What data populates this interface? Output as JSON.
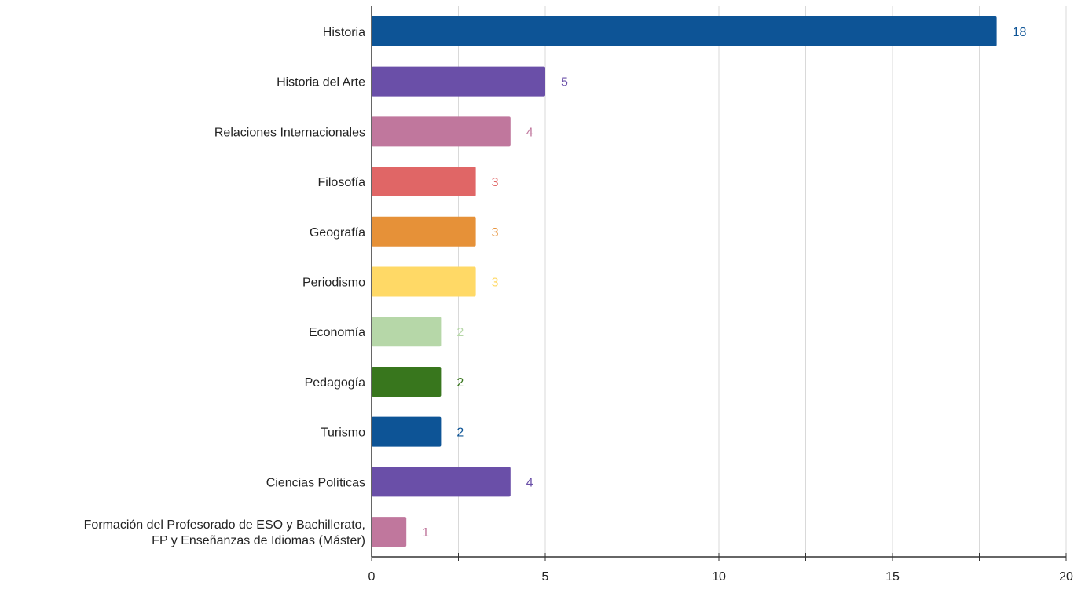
{
  "chart_data": {
    "type": "bar",
    "orientation": "horizontal",
    "title": "",
    "xlabel": "",
    "ylabel": "",
    "xlim": [
      0,
      20
    ],
    "x_ticks": [
      "0",
      "5",
      "10",
      "15",
      "20"
    ],
    "grid": true,
    "legend": "none",
    "categories": [
      "Historia",
      "Historia del Arte",
      "Relaciones Internacionales",
      "Filosofía",
      "Geografía",
      "Periodismo",
      "Economía",
      "Pedagogía",
      "Turismo",
      "Ciencias Políticas",
      "Formación del Profesorado de ESO y Bachillerato,\nFP y Enseñanzas de Idiomas (Máster)"
    ],
    "values": [
      18,
      5,
      4,
      3,
      3,
      3,
      2,
      2,
      2,
      4,
      1
    ],
    "data_labels": [
      "18",
      "5",
      "4",
      "3",
      "3",
      "3",
      "2",
      "2",
      "2",
      "4",
      "1"
    ],
    "colors": [
      "#0d5496",
      "#6a4fa8",
      "#c0779d",
      "#e06666",
      "#e69138",
      "#ffd966",
      "#b6d7a8",
      "#38761d",
      "#0d5496",
      "#6a4fa8",
      "#c0779d"
    ]
  }
}
